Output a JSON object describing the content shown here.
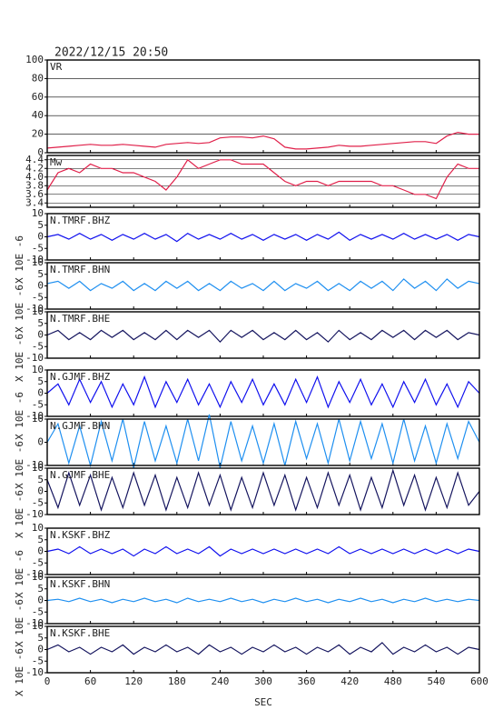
{
  "chart_data": {
    "type": "line",
    "title": "2022/12/15 20:50",
    "xlabel": "SEC",
    "x": [
      0,
      15,
      30,
      45,
      60,
      75,
      90,
      105,
      120,
      135,
      150,
      165,
      180,
      195,
      210,
      225,
      240,
      255,
      270,
      285,
      300,
      315,
      330,
      345,
      360,
      375,
      390,
      405,
      420,
      435,
      450,
      465,
      480,
      495,
      510,
      525,
      540,
      555,
      570,
      585,
      600
    ],
    "xlim": [
      0,
      600
    ],
    "xticks": [
      0,
      60,
      120,
      180,
      240,
      300,
      360,
      420,
      480,
      540,
      600
    ],
    "panels": [
      {
        "label": "VR",
        "ylim": [
          0,
          100
        ],
        "yticks": [
          0,
          20,
          40,
          60,
          80,
          100
        ],
        "grid": true,
        "series": [
          {
            "color": "#e0204a",
            "values": [
              5,
              6,
              7,
              8,
              9,
              8,
              8,
              9,
              8,
              7,
              6,
              9,
              10,
              11,
              10,
              11,
              16,
              17,
              17,
              16,
              18,
              15,
              6,
              4,
              4,
              5,
              6,
              8,
              7,
              7,
              8,
              9,
              10,
              11,
              12,
              12,
              10,
              18,
              22,
              20,
              20
            ]
          }
        ]
      },
      {
        "label": "Mw",
        "ylim": [
          3.3,
          4.5
        ],
        "yticks": [
          3.4,
          3.6,
          3.8,
          {
            "value": 4,
            "label": "4.0"
          },
          4.2,
          4.4
        ],
        "grid": true,
        "series": [
          {
            "color": "#e0204a",
            "values": [
              3.7,
              4.1,
              4.2,
              4.1,
              4.3,
              4.2,
              4.2,
              4.1,
              4.1,
              4.0,
              3.9,
              3.7,
              4.0,
              4.4,
              4.2,
              4.3,
              4.4,
              4.4,
              4.3,
              4.3,
              4.3,
              4.1,
              3.9,
              3.8,
              3.9,
              3.9,
              3.8,
              3.9,
              3.9,
              3.9,
              3.9,
              3.8,
              3.8,
              3.7,
              3.6,
              3.6,
              3.5,
              4.0,
              4.3,
              4.2,
              4.2
            ]
          }
        ]
      },
      {
        "label": "N.TMRF.BHZ",
        "ylabel": "X 10E -6",
        "ylim": [
          -10,
          10
        ],
        "yticks": [
          -10,
          -5,
          0,
          5,
          10
        ],
        "series": [
          {
            "color": "#1010ee",
            "values": [
              0,
              1,
              -1,
              1.5,
              -1,
              1,
              -1.5,
              1,
              -1,
              1.5,
              -1,
              1,
              -2,
              1.5,
              -1,
              1,
              -1,
              1.5,
              -1,
              1,
              -1.5,
              1,
              -1,
              1,
              -1.5,
              1,
              -1,
              2,
              -1.5,
              1,
              -1,
              1,
              -1,
              1.5,
              -1,
              1,
              -1,
              1,
              -1.5,
              1,
              0
            ]
          }
        ]
      },
      {
        "label": "N.TMRF.BHN",
        "ylabel": "X 10E -6",
        "ylim": [
          -10,
          10
        ],
        "yticks": [
          -10,
          -5,
          0,
          5,
          10
        ],
        "series": [
          {
            "color": "#1e8ff0",
            "values": [
              1,
              2,
              -1,
              2,
              -2,
              1,
              -1,
              2,
              -2,
              1,
              -2,
              2,
              -1,
              2,
              -2,
              1,
              -2,
              2,
              -1,
              1,
              -2,
              2,
              -2,
              1,
              -1,
              2,
              -2,
              1,
              -2,
              2,
              -1,
              2,
              -2,
              3,
              -1,
              2,
              -2,
              3,
              -1,
              2,
              1
            ]
          }
        ]
      },
      {
        "label": "N.TMRF.BHE",
        "ylabel": "X 10E -6",
        "ylim": [
          -10,
          10
        ],
        "yticks": [
          -10,
          -5,
          0,
          5,
          10
        ],
        "series": [
          {
            "color": "#14145e",
            "values": [
              0,
              2,
              -2,
              1,
              -2,
              2,
              -1,
              2,
              -2,
              1,
              -2,
              2,
              -2,
              2,
              -1,
              2,
              -3,
              2,
              -1,
              2,
              -2,
              1,
              -2,
              2,
              -2,
              1,
              -3,
              2,
              -2,
              1,
              -2,
              2,
              -1,
              2,
              -2,
              2,
              -1,
              2,
              -2,
              1,
              0
            ]
          }
        ]
      },
      {
        "label": "N.GJMF.BHZ",
        "ylabel": "X 10E -6",
        "ylim": [
          -10,
          10
        ],
        "yticks": [
          -10,
          -5,
          0,
          5,
          10
        ],
        "series": [
          {
            "color": "#1010ee",
            "values": [
              0,
              4,
              -5,
              6,
              -4,
              5,
              -6,
              4,
              -5,
              7,
              -6,
              5,
              -4,
              6,
              -5,
              4,
              -6,
              5,
              -4,
              6,
              -5,
              4,
              -5,
              6,
              -4,
              7,
              -6,
              5,
              -4,
              6,
              -5,
              4,
              -6,
              5,
              -4,
              6,
              -5,
              4,
              -6,
              5,
              0
            ]
          }
        ]
      },
      {
        "label": "N.GJMF.BHN",
        "ylabel": "X 10E -6",
        "ylim": [
          -10,
          10
        ],
        "yticks": [
          -10,
          0,
          10
        ],
        "series": [
          {
            "color": "#1e8ff0",
            "values": [
              0,
              8,
              -9,
              7,
              -10,
              9,
              -8,
              10,
              -11,
              9,
              -8,
              7,
              -9,
              10,
              -8,
              12,
              -11,
              9,
              -8,
              7,
              -9,
              8,
              -10,
              9,
              -7,
              8,
              -9,
              10,
              -8,
              9,
              -7,
              8,
              -9,
              10,
              -8,
              7,
              -9,
              8,
              -7,
              9,
              0
            ]
          }
        ]
      },
      {
        "label": "N.GJMF.BHE",
        "ylabel": "X 10E -6",
        "ylim": [
          -10,
          10
        ],
        "yticks": [
          -10,
          -5,
          0,
          5,
          10
        ],
        "series": [
          {
            "color": "#14145e",
            "values": [
              5,
              -7,
              8,
              -6,
              7,
              -8,
              6,
              -7,
              8,
              -6,
              7,
              -8,
              6,
              -7,
              8,
              -6,
              7,
              -8,
              6,
              -7,
              8,
              -6,
              7,
              -8,
              6,
              -7,
              8,
              -6,
              7,
              -8,
              6,
              -7,
              9,
              -6,
              7,
              -8,
              6,
              -7,
              8,
              -6,
              0
            ]
          }
        ]
      },
      {
        "label": "N.KSKF.BHZ",
        "ylabel": "X 10E -6",
        "ylim": [
          -10,
          10
        ],
        "yticks": [
          -10,
          -5,
          0,
          5,
          10
        ],
        "series": [
          {
            "color": "#1010ee",
            "values": [
              0,
              1,
              -1,
              2,
              -1,
              1,
              -1,
              1,
              -2,
              1,
              -1,
              2,
              -1,
              1,
              -1,
              2,
              -2,
              1,
              -1,
              1,
              -1,
              1,
              -1,
              1,
              -1,
              1,
              -1,
              2,
              -1,
              1,
              -1,
              1,
              -1,
              1,
              -1,
              1,
              -1,
              1,
              -1,
              1,
              0
            ]
          }
        ]
      },
      {
        "label": "N.KSKF.BHN",
        "ylabel": "X 10E -6",
        "ylim": [
          -10,
          10
        ],
        "yticks": [
          -10,
          -5,
          0,
          5,
          10
        ],
        "series": [
          {
            "color": "#1e8ff0",
            "values": [
              0,
              0.5,
              -0.5,
              1,
              -0.5,
              0.5,
              -1,
              0.5,
              -0.5,
              1,
              -0.5,
              0.5,
              -1,
              1,
              -0.5,
              0.5,
              -0.5,
              1,
              -0.5,
              0.5,
              -1,
              0.5,
              -0.5,
              1,
              -0.5,
              0.5,
              -1,
              0.5,
              -0.5,
              1,
              -0.5,
              0.5,
              -1,
              0.5,
              -0.5,
              1,
              -0.5,
              0.5,
              -0.5,
              0.5,
              0
            ]
          }
        ]
      },
      {
        "label": "N.KSKF.BHE",
        "ylabel": "X 10E -6",
        "ylim": [
          -10,
          10
        ],
        "yticks": [
          -10,
          -5,
          0,
          5,
          10
        ],
        "series": [
          {
            "color": "#14145e",
            "values": [
              0,
              2,
              -1,
              1,
              -2,
              1,
              -1,
              2,
              -2,
              1,
              -1,
              2,
              -1,
              1,
              -2,
              2,
              -1,
              1,
              -2,
              1,
              -1,
              2,
              -1,
              1,
              -2,
              1,
              -1,
              2,
              -2,
              1,
              -1,
              3,
              -2,
              1,
              -1,
              2,
              -1,
              1,
              -2,
              1,
              0
            ]
          }
        ]
      }
    ]
  }
}
